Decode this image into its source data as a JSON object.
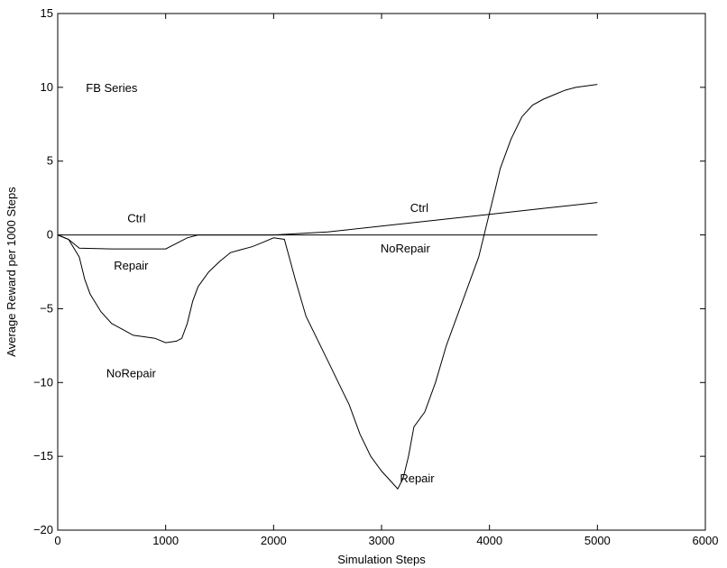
{
  "chart_data": {
    "type": "line",
    "title": "",
    "xlabel": "Simulation Steps",
    "ylabel": "Average Reward per 1000 Steps",
    "xlim": [
      0,
      6000
    ],
    "ylim": [
      -20,
      15
    ],
    "xticks": [
      0,
      1000,
      2000,
      3000,
      4000,
      5000,
      6000
    ],
    "yticks": [
      -20,
      -15,
      -10,
      -5,
      0,
      5,
      10,
      15
    ],
    "xtick_labels": [
      "0",
      "1000",
      "2000",
      "3000",
      "4000",
      "5000",
      "6000"
    ],
    "ytick_labels": [
      "−20",
      "−15",
      "−10",
      "−5",
      "0",
      "5",
      "10",
      "15"
    ],
    "grid": false,
    "legend": "none",
    "series": [
      {
        "color": "#000000",
        "x": [
          0,
          100,
          200,
          500,
          1000,
          1200,
          1300,
          2000,
          2500,
          3000,
          3500,
          4000,
          4500,
          5000
        ],
        "y": [
          0,
          -0.3,
          -0.9,
          -0.95,
          -0.95,
          -0.2,
          0,
          0,
          0.2,
          0.6,
          1.0,
          1.4,
          1.8,
          2.2
        ]
      },
      {
        "color": "#000000",
        "x": [
          0,
          5000
        ],
        "y": [
          0,
          0
        ]
      },
      {
        "color": "#000000",
        "x": [
          0,
          100,
          200,
          250,
          300,
          400,
          500,
          600,
          700,
          800,
          900,
          1000,
          1100,
          1150,
          1200,
          1250,
          1300,
          1400,
          1500,
          1600,
          1700,
          1800,
          1900,
          2000,
          2100,
          2200,
          2300,
          2400,
          2500,
          2600,
          2700,
          2800,
          2900,
          3000,
          3100,
          3150,
          3200,
          3250,
          3300,
          3400,
          3500,
          3600,
          3700,
          3800,
          3900,
          3950,
          4000,
          4050,
          4100,
          4200,
          4300,
          4400,
          4500,
          4600,
          4700,
          4800,
          4900,
          5000
        ],
        "y": [
          0,
          -0.3,
          -1.5,
          -3.0,
          -4.0,
          -5.2,
          -6.0,
          -6.4,
          -6.8,
          -6.9,
          -7.0,
          -7.3,
          -7.2,
          -7.0,
          -6.0,
          -4.5,
          -3.5,
          -2.5,
          -1.8,
          -1.2,
          -1.0,
          -0.8,
          -0.5,
          -0.2,
          -0.3,
          -3.0,
          -5.5,
          -7.0,
          -8.5,
          -10.0,
          -11.5,
          -13.5,
          -15.0,
          -16.0,
          -16.8,
          -17.2,
          -16.5,
          -15.0,
          -13.0,
          -12.0,
          -10.0,
          -7.5,
          -5.5,
          -3.5,
          -1.5,
          0.0,
          1.5,
          3.0,
          4.5,
          6.5,
          8.0,
          8.8,
          9.2,
          9.5,
          9.8,
          10.0,
          10.1,
          10.2
        ]
      }
    ],
    "annotations": [
      {
        "text": "FB Series",
        "x": 500,
        "y": 9.7
      },
      {
        "text": "Ctrl",
        "x": 730,
        "y": 0.85
      },
      {
        "text": "Repair",
        "x": 680,
        "y": -2.35
      },
      {
        "text": "NoRepair",
        "x": 680,
        "y": -9.65
      },
      {
        "text": "Ctrl",
        "x": 3350,
        "y": 1.55
      },
      {
        "text": "NoRepair",
        "x": 3220,
        "y": -1.2
      },
      {
        "text": "Repair",
        "x": 3330,
        "y": -16.75
      }
    ]
  }
}
